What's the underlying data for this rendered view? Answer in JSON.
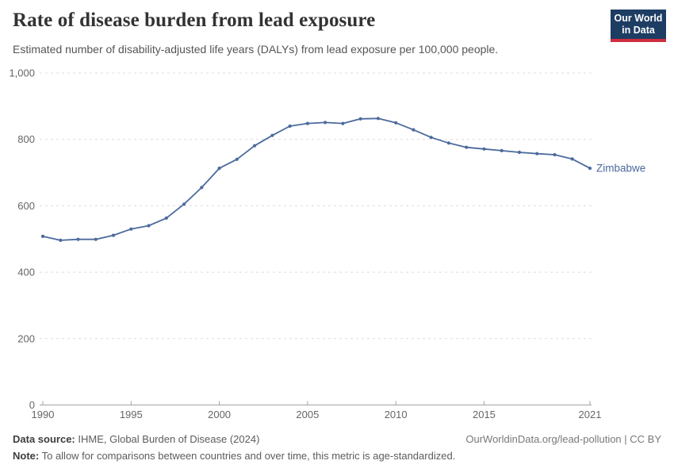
{
  "header": {
    "title": "Rate of disease burden from lead exposure",
    "subtitle": "Estimated number of disability-adjusted life years (DALYs) from lead exposure per 100,000 people.",
    "logo": {
      "line1": "Our World",
      "line2": "in Data",
      "bg_color": "#1d3d63",
      "accent_color": "#cf2e41"
    }
  },
  "chart_data": {
    "type": "line",
    "title": "Rate of disease burden from lead exposure",
    "subtitle": "Estimated number of disability-adjusted life years (DALYs) from lead exposure per 100,000 people.",
    "xlabel": "",
    "ylabel": "",
    "x": [
      1990,
      1991,
      1992,
      1993,
      1994,
      1995,
      1996,
      1997,
      1998,
      1999,
      2000,
      2001,
      2002,
      2003,
      2004,
      2005,
      2006,
      2007,
      2008,
      2009,
      2010,
      2011,
      2012,
      2013,
      2014,
      2015,
      2016,
      2017,
      2018,
      2019,
      2020,
      2021
    ],
    "series": [
      {
        "name": "Zimbabwe",
        "color": "#4C6A9C",
        "values": [
          508,
          496,
          499,
          499,
          511,
          530,
          540,
          563,
          605,
          655,
          713,
          740,
          781,
          812,
          840,
          848,
          851,
          848,
          862,
          863,
          850,
          829,
          806,
          789,
          776,
          771,
          766,
          761,
          757,
          754,
          741,
          713
        ]
      }
    ],
    "end_label": "Zimbabwe",
    "xlim": [
      1990,
      2021
    ],
    "ylim": [
      0,
      1000
    ],
    "xticks": {
      "values": [
        1990,
        1995,
        2000,
        2005,
        2010,
        2015,
        2021
      ],
      "labels": [
        "1990",
        "1995",
        "2000",
        "2005",
        "2010",
        "2015",
        "2021"
      ]
    },
    "yticks": {
      "values": [
        0,
        200,
        400,
        600,
        800,
        1000
      ],
      "labels": [
        "0",
        "200",
        "400",
        "600",
        "800",
        "1,000"
      ]
    },
    "grid": "horizontal-dashed",
    "legend": "end-of-line-label",
    "colors": {
      "gridline": "#dcdcdc",
      "axis": "#a3a3a3",
      "tick_label": "#666666"
    }
  },
  "footer": {
    "source_label": "Data source:",
    "source_text": " IHME, Global Burden of Disease (2024)",
    "credit": "OurWorldinData.org/lead-pollution | CC BY",
    "note_label": "Note:",
    "note_text": " To allow for comparisons between countries and over time, this metric is age-standardized."
  }
}
